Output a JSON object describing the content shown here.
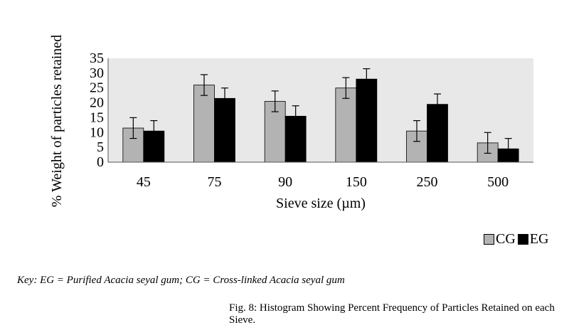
{
  "chart_data": {
    "type": "bar",
    "categories": [
      "45",
      "75",
      "90",
      "150",
      "250",
      "500"
    ],
    "series": [
      {
        "name": "CG",
        "color": "#b3b3b3",
        "values": [
          11.5,
          26,
          20.5,
          25,
          10.5,
          6.5
        ],
        "errors": [
          3.5,
          3.5,
          3.5,
          3.5,
          3.5,
          3.5
        ]
      },
      {
        "name": "EG",
        "color": "#000000",
        "values": [
          10.5,
          21.5,
          15.5,
          28,
          19.5,
          4.5
        ],
        "errors": [
          3.5,
          3.5,
          3.5,
          3.5,
          3.5,
          3.5
        ]
      }
    ],
    "xlabel": "Sieve size (µm)",
    "ylabel": "% Weight of particles retained",
    "ylim": [
      0,
      35
    ],
    "yticks": [
      "0",
      "5",
      "10",
      "15",
      "20",
      "25",
      "30",
      "35"
    ],
    "grid": false,
    "plot_background": "#e8e8e8",
    "legend_position": "bottom-right"
  },
  "key_text": "Key: EG = Purified Acacia seyal gum; CG = Cross-linked Acacia seyal gum",
  "caption": "Fig. 8: Histogram Showing Percent Frequency of Particles Retained on each Sieve."
}
